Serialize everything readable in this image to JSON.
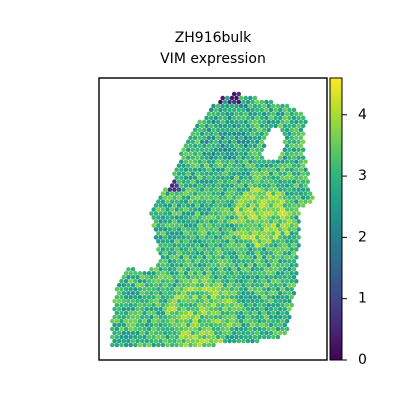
{
  "chart_data": {
    "type": "scatter",
    "title_line1": "ZH916bulk",
    "title_line2": "VIM expression",
    "xlabel": "",
    "ylabel": "",
    "grid": false,
    "colorbar": {
      "colormap": "viridis",
      "range": [
        0,
        4.6
      ],
      "ticks": [
        {
          "value": 0,
          "label": "0"
        },
        {
          "value": 1,
          "label": "1"
        },
        {
          "value": 2,
          "label": "2"
        },
        {
          "value": 3,
          "label": "3"
        },
        {
          "value": 4,
          "label": "4"
        }
      ]
    },
    "viridis_stops": [
      "#440154",
      "#482878",
      "#3e4989",
      "#31688e",
      "#26828e",
      "#1f9e89",
      "#35b779",
      "#6ece58",
      "#b5de2b",
      "#fde725"
    ]
  }
}
